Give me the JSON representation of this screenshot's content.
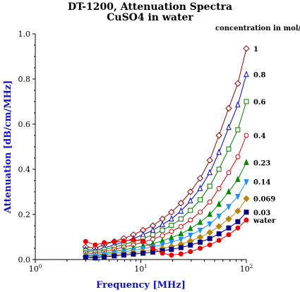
{
  "header": {
    "title_line1": "DT-1200, Attenuation Spectra",
    "title_line2": "CuSO4 in water",
    "legend_title": "concentration in mol/l"
  },
  "colors": {
    "axis_title": "#1010c8",
    "axis": "#000000"
  },
  "chart_data": {
    "type": "line",
    "title": "DT-1200, Attenuation Spectra",
    "subtitle": "CuSO4 in water",
    "xlabel": "Frequency [MHz]",
    "ylabel": "Attenuation [dB/cm/MHz]",
    "xscale": "log",
    "xlim": [
      1,
      100
    ],
    "ylim": [
      0,
      1.0
    ],
    "x_ticks": [
      {
        "value": 1,
        "base": "10",
        "exp": "0"
      },
      {
        "value": 10,
        "base": "10",
        "exp": "1"
      },
      {
        "value": 100,
        "base": "10",
        "exp": "2"
      }
    ],
    "y_ticks": [
      0.0,
      0.2,
      0.4,
      0.6,
      0.8,
      1.0
    ],
    "y_tick_labels": [
      "0.0",
      "0.2",
      "0.4",
      "0.6",
      "0.8",
      "1.0"
    ],
    "legend_title": "concentration in mol/l",
    "legend_position": "right",
    "x": [
      3,
      3.7,
      4.5,
      5.6,
      6.9,
      8.5,
      10.5,
      13,
      16,
      19.5,
      24,
      29.5,
      36.5,
      45,
      55,
      68,
      83,
      100
    ],
    "series": [
      {
        "name": "1",
        "color": "#8b0000",
        "marker": "diamond-open",
        "values": [
          0.056,
          0.05,
          0.066,
          0.08,
          0.094,
          0.11,
          0.13,
          0.15,
          0.18,
          0.21,
          0.25,
          0.3,
          0.36,
          0.44,
          0.55,
          0.67,
          0.78,
          0.935
        ]
      },
      {
        "name": "0.8",
        "color": "#0000cc",
        "marker": "triangle-open",
        "values": [
          0.045,
          0.04,
          0.052,
          0.064,
          0.078,
          0.093,
          0.11,
          0.13,
          0.155,
          0.18,
          0.215,
          0.26,
          0.315,
          0.385,
          0.475,
          0.585,
          0.685,
          0.82
        ]
      },
      {
        "name": "0.6",
        "color": "#007a00",
        "marker": "square-open",
        "values": [
          0.038,
          0.032,
          0.044,
          0.055,
          0.066,
          0.08,
          0.093,
          0.11,
          0.13,
          0.152,
          0.18,
          0.218,
          0.265,
          0.325,
          0.4,
          0.49,
          0.575,
          0.7
        ]
      },
      {
        "name": "0.4",
        "color": "#dd0000",
        "marker": "circle-open",
        "values": [
          0.03,
          0.025,
          0.035,
          0.045,
          0.055,
          0.065,
          0.077,
          0.09,
          0.106,
          0.125,
          0.146,
          0.175,
          0.21,
          0.255,
          0.315,
          0.385,
          0.455,
          0.55
        ]
      },
      {
        "name": "0.23",
        "color": "#008800",
        "marker": "triangle-filled",
        "values": [
          0.022,
          0.018,
          0.027,
          0.035,
          0.043,
          0.051,
          0.06,
          0.07,
          0.083,
          0.097,
          0.114,
          0.137,
          0.165,
          0.2,
          0.245,
          0.3,
          0.355,
          0.43
        ]
      },
      {
        "name": "0.14",
        "color": "#1e90ff",
        "marker": "triangle-down-filled",
        "values": [
          0.018,
          0.014,
          0.021,
          0.028,
          0.034,
          0.041,
          0.048,
          0.056,
          0.066,
          0.077,
          0.09,
          0.108,
          0.13,
          0.158,
          0.193,
          0.235,
          0.28,
          0.345
        ]
      },
      {
        "name": "0.069",
        "color": "#b8860b",
        "marker": "diamond-filled",
        "values": [
          0.014,
          0.01,
          0.016,
          0.021,
          0.026,
          0.031,
          0.036,
          0.042,
          0.05,
          0.058,
          0.068,
          0.082,
          0.099,
          0.12,
          0.147,
          0.18,
          0.215,
          0.27
        ]
      },
      {
        "name": "0.03",
        "color": "#000080",
        "marker": "square-filled",
        "values": [
          0.01,
          0.007,
          0.012,
          0.016,
          0.02,
          0.024,
          0.028,
          0.033,
          0.039,
          0.045,
          0.053,
          0.064,
          0.077,
          0.093,
          0.114,
          0.14,
          0.168,
          0.21
        ]
      },
      {
        "name": "water",
        "color": "#ee0000",
        "marker": "circle-filled",
        "values": [
          0.08,
          0.065,
          0.075,
          0.078,
          0.082,
          0.088,
          0.082,
          0.05,
          0.028,
          0.02,
          0.025,
          0.035,
          0.05,
          0.065,
          0.085,
          0.11,
          0.14,
          0.175
        ]
      }
    ]
  }
}
